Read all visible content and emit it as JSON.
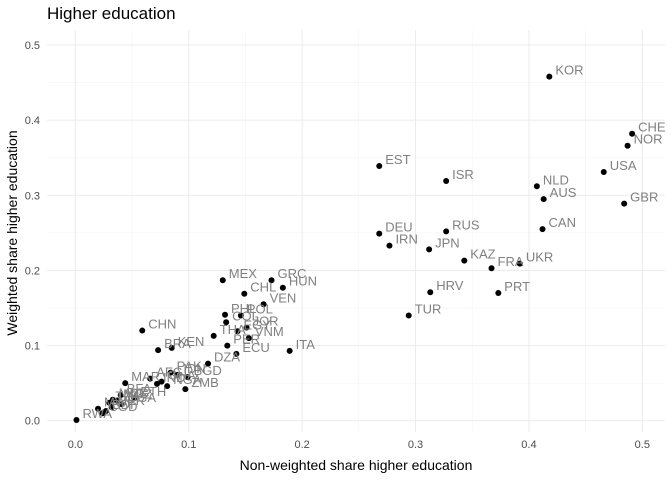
{
  "chart_data": {
    "type": "scatter",
    "title": "Higher education",
    "xlabel": "Non-weighted share higher education",
    "ylabel": "Weighted share higher education",
    "xlim": [
      -0.025,
      0.52
    ],
    "ylim": [
      -0.015,
      0.52
    ],
    "x_ticks": [
      0.0,
      0.1,
      0.2,
      0.3,
      0.4,
      0.5
    ],
    "y_ticks": [
      0.0,
      0.1,
      0.2,
      0.3,
      0.4,
      0.5
    ],
    "x_tick_labels": [
      "0.0",
      "0.1",
      "0.2",
      "0.3",
      "0.4",
      "0.5"
    ],
    "y_tick_labels": [
      "0.0",
      "0.1",
      "0.2",
      "0.3",
      "0.4",
      "0.5"
    ],
    "grid": true,
    "colors": {
      "point": "#000000",
      "label": "#808080",
      "grid": "#ebebeb"
    },
    "points": [
      {
        "label": "KOR",
        "x": 0.418,
        "y": 0.458
      },
      {
        "label": "CHE",
        "x": 0.491,
        "y": 0.382
      },
      {
        "label": "NOR",
        "x": 0.487,
        "y": 0.366
      },
      {
        "label": "USA",
        "x": 0.466,
        "y": 0.331
      },
      {
        "label": "GBR",
        "x": 0.484,
        "y": 0.289
      },
      {
        "label": "NLD",
        "x": 0.407,
        "y": 0.312
      },
      {
        "label": "AUS",
        "x": 0.413,
        "y": 0.295
      },
      {
        "label": "CAN",
        "x": 0.412,
        "y": 0.255
      },
      {
        "label": "EST",
        "x": 0.268,
        "y": 0.339
      },
      {
        "label": "ISR",
        "x": 0.327,
        "y": 0.319
      },
      {
        "label": "DEU",
        "x": 0.268,
        "y": 0.249
      },
      {
        "label": "RUS",
        "x": 0.327,
        "y": 0.252
      },
      {
        "label": "IRN",
        "x": 0.277,
        "y": 0.233
      },
      {
        "label": "JPN",
        "x": 0.312,
        "y": 0.228
      },
      {
        "label": "KAZ",
        "x": 0.343,
        "y": 0.213
      },
      {
        "label": "FRA",
        "x": 0.367,
        "y": 0.203
      },
      {
        "label": "UKR",
        "x": 0.392,
        "y": 0.209
      },
      {
        "label": "HRV",
        "x": 0.313,
        "y": 0.171
      },
      {
        "label": "PRT",
        "x": 0.373,
        "y": 0.17
      },
      {
        "label": "TUR",
        "x": 0.294,
        "y": 0.14
      },
      {
        "label": "ITA",
        "x": 0.189,
        "y": 0.093
      },
      {
        "label": "MEX",
        "x": 0.13,
        "y": 0.187
      },
      {
        "label": "GRC",
        "x": 0.173,
        "y": 0.187
      },
      {
        "label": "HUN",
        "x": 0.183,
        "y": 0.177
      },
      {
        "label": "CHL",
        "x": 0.149,
        "y": 0.169
      },
      {
        "label": "VEN",
        "x": 0.166,
        "y": 0.155
      },
      {
        "label": "PHL",
        "x": 0.132,
        "y": 0.141
      },
      {
        "label": "POL",
        "x": 0.146,
        "y": 0.14
      },
      {
        "label": "COL",
        "x": 0.133,
        "y": 0.131
      },
      {
        "label": "JOR",
        "x": 0.151,
        "y": 0.124
      },
      {
        "label": "THA",
        "x": 0.122,
        "y": 0.113
      },
      {
        "label": "EGY",
        "x": 0.143,
        "y": 0.119
      },
      {
        "label": "VNM",
        "x": 0.153,
        "y": 0.11
      },
      {
        "label": "PER",
        "x": 0.134,
        "y": 0.1
      },
      {
        "label": "ECU",
        "x": 0.142,
        "y": 0.089
      },
      {
        "label": "DZA",
        "x": 0.117,
        "y": 0.076
      },
      {
        "label": "CHN",
        "x": 0.059,
        "y": 0.12
      },
      {
        "label": "BRA",
        "x": 0.073,
        "y": 0.094
      },
      {
        "label": "KEN",
        "x": 0.085,
        "y": 0.097
      },
      {
        "label": "PAK",
        "x": 0.084,
        "y": 0.064
      },
      {
        "label": "IDN",
        "x": 0.09,
        "y": 0.061
      },
      {
        "label": "BGD",
        "x": 0.099,
        "y": 0.058
      },
      {
        "label": "ZMB",
        "x": 0.097,
        "y": 0.042
      },
      {
        "label": "MAR",
        "x": 0.044,
        "y": 0.05
      },
      {
        "label": "AFG",
        "x": 0.066,
        "y": 0.056
      },
      {
        "label": "GHA",
        "x": 0.076,
        "y": 0.052
      },
      {
        "label": "NGA",
        "x": 0.081,
        "y": 0.046
      },
      {
        "label": "IND",
        "x": 0.072,
        "y": 0.049
      },
      {
        "label": "BFA",
        "x": 0.04,
        "y": 0.034
      },
      {
        "label": "ETH",
        "x": 0.052,
        "y": 0.03
      },
      {
        "label": "MDG",
        "x": 0.033,
        "y": 0.028
      },
      {
        "label": "UGA",
        "x": 0.041,
        "y": 0.022
      },
      {
        "label": "NER",
        "x": 0.032,
        "y": 0.018
      },
      {
        "label": "BDI",
        "x": 0.027,
        "y": 0.013
      },
      {
        "label": "TZA",
        "x": 0.03,
        "y": 0.024
      },
      {
        "label": "MOZ",
        "x": 0.037,
        "y": 0.027
      },
      {
        "label": "COD",
        "x": 0.024,
        "y": 0.01
      },
      {
        "label": "MWI",
        "x": 0.02,
        "y": 0.016
      },
      {
        "label": "RWA",
        "x": 0.001,
        "y": 0.001
      }
    ]
  }
}
